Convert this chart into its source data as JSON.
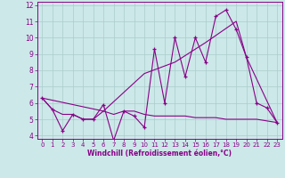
{
  "xlabel": "Windchill (Refroidissement éolien,°C)",
  "background_color": "#cce8e8",
  "grid_color": "#aacccc",
  "line_color": "#880088",
  "xlim": [
    -0.5,
    23.5
  ],
  "ylim": [
    3.8,
    12.2
  ],
  "xticks": [
    0,
    1,
    2,
    3,
    4,
    5,
    6,
    7,
    8,
    9,
    10,
    11,
    12,
    13,
    14,
    15,
    16,
    17,
    18,
    19,
    20,
    21,
    22,
    23
  ],
  "yticks": [
    4,
    5,
    6,
    7,
    8,
    9,
    10,
    11,
    12
  ],
  "series_jagged_x": [
    0,
    1,
    2,
    3,
    4,
    5,
    6,
    7,
    8,
    9,
    10,
    11,
    12,
    13,
    14,
    15,
    16,
    17,
    18,
    19,
    20,
    21,
    22,
    23
  ],
  "series_jagged_y": [
    6.3,
    5.6,
    4.3,
    5.3,
    5.0,
    5.0,
    5.9,
    3.7,
    5.5,
    5.2,
    4.5,
    9.3,
    6.0,
    10.0,
    7.6,
    10.0,
    8.5,
    11.3,
    11.7,
    10.5,
    8.8,
    6.0,
    5.7,
    4.8
  ],
  "series_diagonal_x": [
    0,
    6,
    10,
    13,
    16,
    19,
    20,
    23
  ],
  "series_diagonal_y": [
    6.3,
    5.5,
    7.8,
    8.5,
    9.7,
    11.0,
    8.8,
    4.8
  ],
  "series_flat_x": [
    0,
    1,
    2,
    3,
    4,
    5,
    6,
    7,
    8,
    9,
    10,
    11,
    12,
    13,
    14,
    15,
    16,
    17,
    18,
    19,
    20,
    21,
    22,
    23
  ],
  "series_flat_y": [
    6.3,
    5.6,
    5.3,
    5.3,
    5.0,
    5.0,
    5.5,
    5.3,
    5.5,
    5.5,
    5.3,
    5.2,
    5.2,
    5.2,
    5.2,
    5.1,
    5.1,
    5.1,
    5.0,
    5.0,
    5.0,
    5.0,
    4.9,
    4.8
  ]
}
